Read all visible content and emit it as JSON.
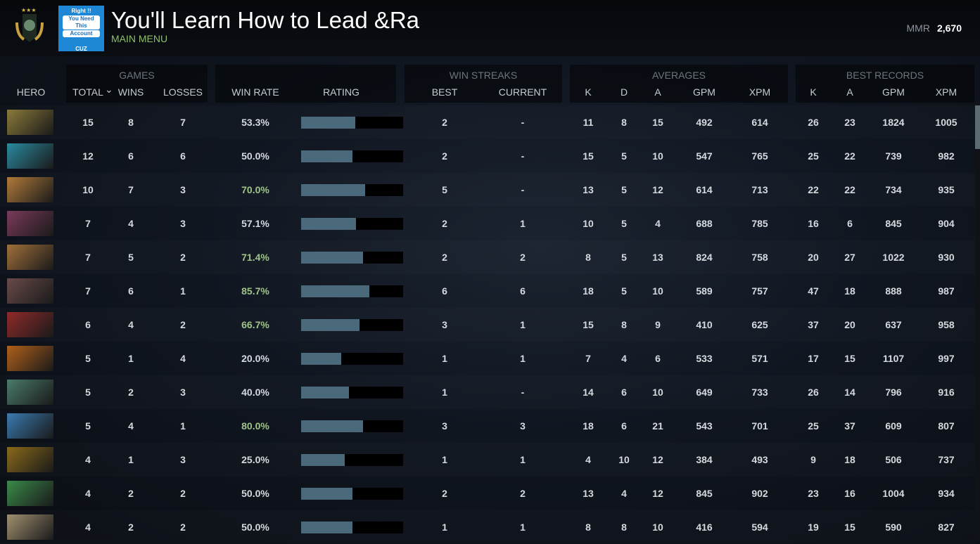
{
  "header": {
    "title": "You'll Learn How to Lead &Ra",
    "subtitle": "MAIN MENU",
    "mmr_label": "MMR",
    "mmr_value": "2,670",
    "promo": [
      "Right !!",
      "You Need This",
      "Account",
      "CUZ"
    ]
  },
  "groups": {
    "games": "GAMES",
    "winrate": "",
    "streaks": "WIN STREAKS",
    "averages": "AVERAGES",
    "best": "BEST RECORDS"
  },
  "columns": {
    "hero": "HERO",
    "total": "TOTAL",
    "wins": "WINS",
    "losses": "LOSSES",
    "winrate": "WIN RATE",
    "rating": "RATING",
    "best": "BEST",
    "current": "CURRENT",
    "k": "K",
    "d": "D",
    "a": "A",
    "gpm": "GPM",
    "xpm": "XPM",
    "bk": "K",
    "ba": "A",
    "bgpm": "GPM",
    "bxpm": "XPM"
  },
  "sort_icon": "chevron-down-icon",
  "colors": {
    "winrate_high": "#9fc48a",
    "winrate_normal": "#d6dadf",
    "bar": "#4a6a7c"
  },
  "rows": [
    {
      "total": "15",
      "wins": "8",
      "losses": "7",
      "winrate": "53.3%",
      "rating": 0.53,
      "best": "2",
      "current": "-",
      "k": "11",
      "d": "8",
      "a": "15",
      "gpm": "492",
      "xpm": "614",
      "bk": "26",
      "ba": "23",
      "bgpm": "1824",
      "bxpm": "1005",
      "c": "#8a7a3a"
    },
    {
      "total": "12",
      "wins": "6",
      "losses": "6",
      "winrate": "50.0%",
      "rating": 0.5,
      "best": "2",
      "current": "-",
      "k": "15",
      "d": "5",
      "a": "10",
      "gpm": "547",
      "xpm": "765",
      "bk": "25",
      "ba": "22",
      "bgpm": "739",
      "bxpm": "982",
      "c": "#2a8aa0"
    },
    {
      "total": "10",
      "wins": "7",
      "losses": "3",
      "winrate": "70.0%",
      "rating": 0.63,
      "best": "5",
      "current": "-",
      "k": "13",
      "d": "5",
      "a": "12",
      "gpm": "614",
      "xpm": "713",
      "bk": "22",
      "ba": "22",
      "bgpm": "734",
      "bxpm": "935",
      "c": "#b07a3a"
    },
    {
      "total": "7",
      "wins": "4",
      "losses": "3",
      "winrate": "57.1%",
      "rating": 0.54,
      "best": "2",
      "current": "1",
      "k": "10",
      "d": "5",
      "a": "4",
      "gpm": "688",
      "xpm": "785",
      "bk": "16",
      "ba": "6",
      "bgpm": "845",
      "bxpm": "904",
      "c": "#7a3a5a"
    },
    {
      "total": "7",
      "wins": "5",
      "losses": "2",
      "winrate": "71.4%",
      "rating": 0.61,
      "best": "2",
      "current": "2",
      "k": "8",
      "d": "5",
      "a": "13",
      "gpm": "824",
      "xpm": "758",
      "bk": "20",
      "ba": "27",
      "bgpm": "1022",
      "bxpm": "930",
      "c": "#a0703a"
    },
    {
      "total": "7",
      "wins": "6",
      "losses": "1",
      "winrate": "85.7%",
      "rating": 0.67,
      "best": "6",
      "current": "6",
      "k": "18",
      "d": "5",
      "a": "10",
      "gpm": "589",
      "xpm": "757",
      "bk": "47",
      "ba": "18",
      "bgpm": "888",
      "bxpm": "987",
      "c": "#6a4a4a"
    },
    {
      "total": "6",
      "wins": "4",
      "losses": "2",
      "winrate": "66.7%",
      "rating": 0.57,
      "best": "3",
      "current": "1",
      "k": "15",
      "d": "8",
      "a": "9",
      "gpm": "410",
      "xpm": "625",
      "bk": "37",
      "ba": "20",
      "bgpm": "637",
      "bxpm": "958",
      "c": "#902a2a"
    },
    {
      "total": "5",
      "wins": "1",
      "losses": "4",
      "winrate": "20.0%",
      "rating": 0.39,
      "best": "1",
      "current": "1",
      "k": "7",
      "d": "4",
      "a": "6",
      "gpm": "533",
      "xpm": "571",
      "bk": "17",
      "ba": "15",
      "bgpm": "1107",
      "bxpm": "997",
      "c": "#b0601a"
    },
    {
      "total": "5",
      "wins": "2",
      "losses": "3",
      "winrate": "40.0%",
      "rating": 0.47,
      "best": "1",
      "current": "-",
      "k": "14",
      "d": "6",
      "a": "10",
      "gpm": "649",
      "xpm": "733",
      "bk": "26",
      "ba": "14",
      "bgpm": "796",
      "bxpm": "916",
      "c": "#4a7a6a"
    },
    {
      "total": "5",
      "wins": "4",
      "losses": "1",
      "winrate": "80.0%",
      "rating": 0.61,
      "best": "3",
      "current": "3",
      "k": "18",
      "d": "6",
      "a": "21",
      "gpm": "543",
      "xpm": "701",
      "bk": "25",
      "ba": "37",
      "bgpm": "609",
      "bxpm": "807",
      "c": "#3a7ab0"
    },
    {
      "total": "4",
      "wins": "1",
      "losses": "3",
      "winrate": "25.0%",
      "rating": 0.43,
      "best": "1",
      "current": "1",
      "k": "4",
      "d": "10",
      "a": "12",
      "gpm": "384",
      "xpm": "493",
      "bk": "9",
      "ba": "18",
      "bgpm": "506",
      "bxpm": "737",
      "c": "#8a6a1a"
    },
    {
      "total": "4",
      "wins": "2",
      "losses": "2",
      "winrate": "50.0%",
      "rating": 0.5,
      "best": "2",
      "current": "2",
      "k": "13",
      "d": "4",
      "a": "12",
      "gpm": "845",
      "xpm": "902",
      "bk": "23",
      "ba": "16",
      "bgpm": "1004",
      "bxpm": "934",
      "c": "#3a8a4a"
    },
    {
      "total": "4",
      "wins": "2",
      "losses": "2",
      "winrate": "50.0%",
      "rating": 0.5,
      "best": "1",
      "current": "1",
      "k": "8",
      "d": "8",
      "a": "10",
      "gpm": "416",
      "xpm": "594",
      "bk": "19",
      "ba": "15",
      "bgpm": "590",
      "bxpm": "827",
      "c": "#a09070"
    }
  ]
}
